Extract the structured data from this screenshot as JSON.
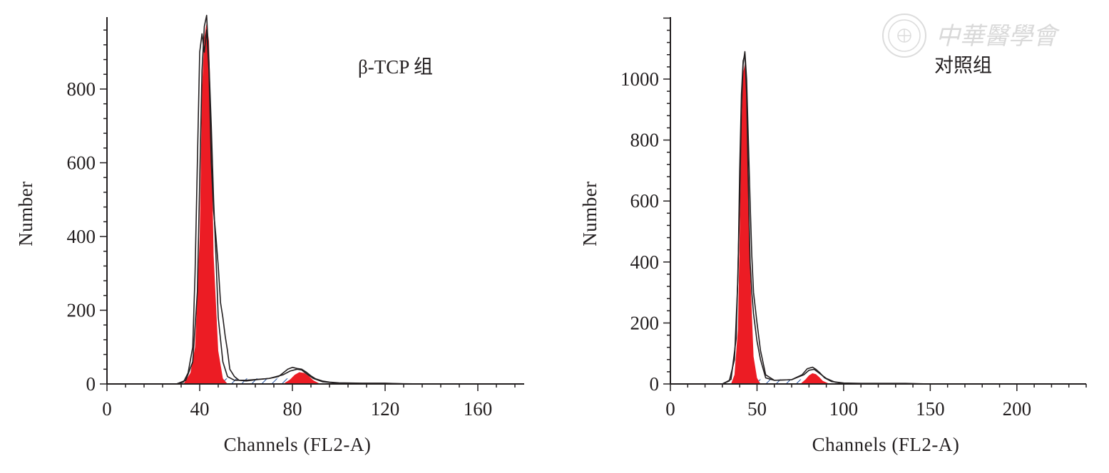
{
  "chart_data": [
    {
      "type": "area",
      "title": "β-TCP 组",
      "xlabel": "Channels (FL2-A)",
      "ylabel": "Number",
      "xlim": [
        0,
        180
      ],
      "ylim": [
        0,
        1000
      ],
      "xticks": [
        0,
        40,
        80,
        120,
        160
      ],
      "yticks": [
        0,
        200,
        400,
        600,
        800
      ],
      "grid": false,
      "g1_peak": {
        "x": [
          33,
          36,
          38,
          40,
          41,
          42,
          43,
          44,
          45,
          46,
          48,
          50,
          52
        ],
        "y": [
          0,
          30,
          100,
          400,
          800,
          940,
          980,
          930,
          700,
          350,
          90,
          15,
          0
        ]
      },
      "g2m_peak": {
        "x": [
          76,
          79,
          81,
          83,
          85,
          87,
          89,
          92
        ],
        "y": [
          0,
          12,
          25,
          32,
          30,
          22,
          10,
          0
        ]
      },
      "s_phase": {
        "x": [
          45,
          78
        ],
        "y": [
          0,
          15
        ]
      },
      "overlay_curves": [
        {
          "x": [
            30,
            33,
            35,
            37,
            38,
            39,
            40,
            41,
            42,
            43,
            44,
            45,
            46,
            47,
            48,
            49,
            50,
            51,
            52,
            53,
            55,
            57,
            60,
            65,
            70,
            74,
            76,
            78,
            80,
            82,
            84,
            86,
            88,
            90,
            93,
            96,
            100,
            110,
            120,
            130,
            140,
            150,
            160,
            170,
            180
          ],
          "y": [
            0,
            5,
            30,
            100,
            300,
            600,
            900,
            950,
            900,
            960,
            850,
            600,
            470,
            400,
            320,
            220,
            180,
            130,
            90,
            40,
            20,
            10,
            8,
            12,
            15,
            20,
            30,
            40,
            45,
            42,
            40,
            32,
            22,
            14,
            8,
            5,
            3,
            2,
            2,
            0,
            0,
            0,
            0,
            0,
            0
          ]
        },
        {
          "x": [
            30,
            34,
            37,
            39,
            40,
            41,
            42,
            43,
            44,
            45,
            46,
            47,
            48,
            50,
            52,
            55,
            60,
            70,
            76,
            79,
            82,
            84,
            86,
            89,
            93,
            100,
            110,
            120,
            140,
            160,
            180
          ],
          "y": [
            0,
            10,
            60,
            250,
            550,
            850,
            970,
            1000,
            870,
            700,
            500,
            350,
            180,
            60,
            20,
            10,
            10,
            15,
            25,
            35,
            40,
            38,
            28,
            15,
            6,
            2,
            1,
            1,
            0,
            0,
            0
          ]
        }
      ]
    },
    {
      "type": "area",
      "title": "对照组",
      "xlabel": "Channels (FL2-A)",
      "ylabel": "Number",
      "xlim": [
        0,
        240
      ],
      "ylim": [
        0,
        1200
      ],
      "xticks": [
        0,
        50,
        100,
        150,
        200
      ],
      "yticks": [
        0,
        200,
        400,
        600,
        800,
        1000
      ],
      "grid": false,
      "g1_peak": {
        "x": [
          35,
          37,
          39,
          40,
          41,
          42,
          43,
          44,
          45,
          46,
          48,
          50,
          52
        ],
        "y": [
          0,
          30,
          180,
          500,
          850,
          1020,
          1050,
          980,
          700,
          380,
          90,
          20,
          0
        ]
      },
      "g2m_peak": {
        "x": [
          75,
          78,
          80,
          82,
          84,
          86,
          88,
          92
        ],
        "y": [
          0,
          15,
          28,
          35,
          32,
          22,
          10,
          0
        ]
      },
      "s_phase": {
        "x": [
          47,
          77
        ],
        "y": [
          0,
          15
        ]
      },
      "overlay_curves": [
        {
          "x": [
            30,
            34,
            37,
            39,
            40,
            41,
            42,
            43,
            44,
            45,
            46,
            47,
            48,
            50,
            52,
            55,
            60,
            70,
            76,
            79,
            82,
            84,
            86,
            89,
            93,
            100,
            110,
            120,
            135,
            150,
            180,
            210,
            240
          ],
          "y": [
            0,
            10,
            80,
            350,
            700,
            950,
            1060,
            1080,
            950,
            650,
            400,
            300,
            230,
            140,
            80,
            20,
            12,
            14,
            30,
            50,
            55,
            48,
            38,
            20,
            8,
            3,
            2,
            2,
            2,
            0,
            0,
            0,
            0
          ]
        },
        {
          "x": [
            30,
            35,
            38,
            40,
            41,
            42,
            43,
            44,
            45,
            46,
            47,
            48,
            50,
            52,
            55,
            60,
            70,
            77,
            80,
            83,
            86,
            90,
            95,
            100,
            120,
            150,
            180,
            210,
            240
          ],
          "y": [
            0,
            15,
            150,
            600,
            900,
            1050,
            1090,
            1000,
            800,
            600,
            420,
            300,
            200,
            110,
            30,
            12,
            14,
            30,
            45,
            48,
            35,
            18,
            6,
            2,
            1,
            0,
            0,
            0,
            0
          ]
        }
      ]
    }
  ],
  "watermark": {
    "text": "中華醫學會",
    "icon": "seal-logo-icon"
  },
  "colors": {
    "fill": "#ec1c24",
    "line": "#231f20",
    "hatch": "#1f4fa0"
  }
}
